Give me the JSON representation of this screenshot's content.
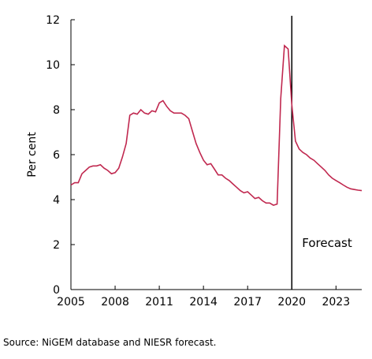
{
  "chart_data": {
    "type": "line",
    "xlabel": "",
    "ylabel": "Per cent",
    "xlim": [
      2005,
      2024.75
    ],
    "ylim": [
      0,
      12
    ],
    "x_ticks": [
      2005,
      2008,
      2011,
      2014,
      2017,
      2020,
      2023
    ],
    "y_ticks": [
      0,
      2,
      4,
      6,
      8,
      10,
      12
    ],
    "grid": false,
    "legend": "none",
    "series": [
      {
        "color": "#c0284f",
        "x": [
          2005.0,
          2005.25,
          2005.5,
          2005.75,
          2006.0,
          2006.25,
          2006.5,
          2006.75,
          2007.0,
          2007.25,
          2007.5,
          2007.75,
          2008.0,
          2008.25,
          2008.5,
          2008.75,
          2009.0,
          2009.25,
          2009.5,
          2009.75,
          2010.0,
          2010.25,
          2010.5,
          2010.75,
          2011.0,
          2011.25,
          2011.5,
          2011.75,
          2012.0,
          2012.25,
          2012.5,
          2012.75,
          2013.0,
          2013.25,
          2013.5,
          2013.75,
          2014.0,
          2014.25,
          2014.5,
          2014.75,
          2015.0,
          2015.25,
          2015.5,
          2015.75,
          2016.0,
          2016.25,
          2016.5,
          2016.75,
          2017.0,
          2017.25,
          2017.5,
          2017.75,
          2018.0,
          2018.25,
          2018.5,
          2018.75,
          2019.0,
          2019.25,
          2019.5,
          2019.75,
          2020.0,
          2020.25,
          2020.5,
          2020.75,
          2021.0,
          2021.25,
          2021.5,
          2021.75,
          2022.0,
          2022.25,
          2022.5,
          2022.75,
          2023.0,
          2023.25,
          2023.5,
          2023.75,
          2024.0,
          2024.25,
          2024.5,
          2024.75
        ],
        "values": [
          4.65,
          4.75,
          4.75,
          5.15,
          5.3,
          5.45,
          5.5,
          5.5,
          5.55,
          5.4,
          5.3,
          5.15,
          5.2,
          5.4,
          5.9,
          6.5,
          7.75,
          7.85,
          7.8,
          8.0,
          7.85,
          7.8,
          7.95,
          7.9,
          8.3,
          8.4,
          8.15,
          7.95,
          7.85,
          7.85,
          7.85,
          7.75,
          7.6,
          7.05,
          6.5,
          6.1,
          5.75,
          5.55,
          5.6,
          5.35,
          5.1,
          5.1,
          4.95,
          4.85,
          4.7,
          4.55,
          4.4,
          4.3,
          4.35,
          4.2,
          4.05,
          4.1,
          3.95,
          3.85,
          3.85,
          3.75,
          3.8,
          8.5,
          10.85,
          10.7,
          8.2,
          6.6,
          6.25,
          6.1,
          6.0,
          5.85,
          5.75,
          5.6,
          5.45,
          5.3,
          5.1,
          4.95,
          4.85,
          4.75,
          4.65,
          4.55,
          4.48,
          4.45,
          4.42,
          4.4
        ]
      }
    ],
    "annotations": [
      {
        "text": "Forecast",
        "x": 2020.0
      }
    ],
    "source": "Source: NiGEM database and NIESR forecast."
  }
}
